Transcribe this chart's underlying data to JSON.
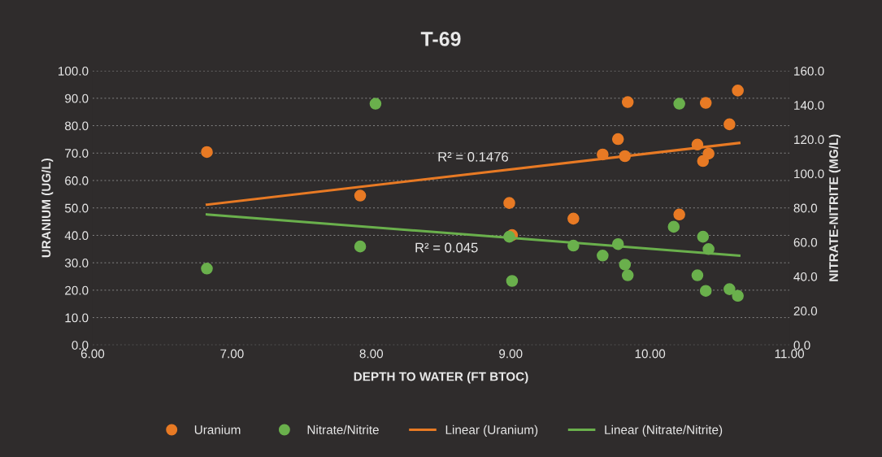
{
  "chart_data": {
    "type": "scatter",
    "title": "T-69",
    "xlabel": "DEPTH TO WATER (FT BTOC)",
    "ylabel": "URANIUM (UG/L)",
    "y2label": "NITRATE-NITRITE (MG/L)",
    "xlim": [
      6.0,
      11.0
    ],
    "xticks": [
      {
        "value": 6,
        "label": "6.00"
      },
      {
        "value": 7,
        "label": "7.00"
      },
      {
        "value": 8,
        "label": "8.00"
      },
      {
        "value": 9,
        "label": "9.00"
      },
      {
        "value": 10,
        "label": "10.00"
      },
      {
        "value": 11,
        "label": "11.00"
      }
    ],
    "ylim": [
      0,
      100
    ],
    "yticks": [
      {
        "value": 0,
        "label": "0.0"
      },
      {
        "value": 10,
        "label": "10.0"
      },
      {
        "value": 20,
        "label": "20.0"
      },
      {
        "value": 30,
        "label": "30.0"
      },
      {
        "value": 40,
        "label": "40.0"
      },
      {
        "value": 50,
        "label": "50.0"
      },
      {
        "value": 60,
        "label": "60.0"
      },
      {
        "value": 70,
        "label": "70.0"
      },
      {
        "value": 80,
        "label": "80.0"
      },
      {
        "value": 90,
        "label": "90.0"
      },
      {
        "value": 100,
        "label": "100.0"
      }
    ],
    "y2lim": [
      0,
      160
    ],
    "y2ticks": [
      {
        "value": 0,
        "label": "0.0"
      },
      {
        "value": 20,
        "label": "20.0"
      },
      {
        "value": 40,
        "label": "40.0"
      },
      {
        "value": 60,
        "label": "60.0"
      },
      {
        "value": 80,
        "label": "80.0"
      },
      {
        "value": 100,
        "label": "100.0"
      },
      {
        "value": 120,
        "label": "120.0"
      },
      {
        "value": 140,
        "label": "140.0"
      },
      {
        "value": 160,
        "label": "160.0"
      }
    ],
    "grid": "y",
    "legend": "bottom",
    "series": [
      {
        "name": "Uranium",
        "marker": "circle",
        "color": "#e87a24",
        "x": [
          6.82,
          7.92,
          8.99,
          9.01,
          9.45,
          9.66,
          9.77,
          9.82,
          9.84,
          10.21,
          10.34,
          10.38,
          10.42,
          10.4,
          10.57,
          10.63
        ],
        "values": [
          70.4,
          54.5,
          51.8,
          40.1,
          46.1,
          69.5,
          75.1,
          68.9,
          88.6,
          47.6,
          73.1,
          67.1,
          69.8,
          88.3,
          80.5,
          92.8
        ]
      },
      {
        "name": "Nitrate/Nitrite",
        "marker": "circle",
        "axis": "y2",
        "color": "#6ab04c",
        "x": [
          6.82,
          8.03,
          7.92,
          8.99,
          9.01,
          9.45,
          9.66,
          9.77,
          9.82,
          9.84,
          10.21,
          10.17,
          10.38,
          10.42,
          10.34,
          10.4,
          10.57,
          10.63
        ],
        "values": [
          44.6,
          140.8,
          57.5,
          63.2,
          37.4,
          58.0,
          52.2,
          58.9,
          46.9,
          40.7,
          140.8,
          69.0,
          63.2,
          56.0,
          40.7,
          31.6,
          32.6,
          28.7
        ]
      },
      {
        "name": "Linear (Uranium)",
        "type": "line",
        "color": "#e87a24",
        "x": [
          6.82,
          10.64
        ],
        "values": [
          51.2,
          73.7
        ]
      },
      {
        "name": "Linear (Nitrate/Nitrite)",
        "type": "line",
        "axis": "y2",
        "color": "#6ab04c",
        "x": [
          6.82,
          10.64
        ],
        "values": [
          76.2,
          52.2
        ]
      }
    ],
    "annotations": [
      "R² = 0.1476",
      "R² = 0.045"
    ]
  }
}
